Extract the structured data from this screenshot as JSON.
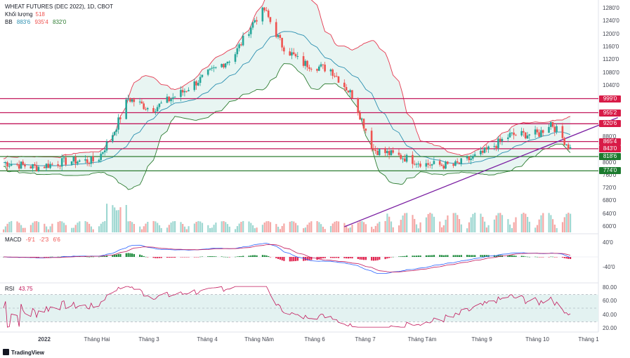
{
  "header": {
    "title": "WHEAT FUTURES (DEC 2022), 1D, CBOT",
    "volume_label": "Khối lượng",
    "volume_value": "518",
    "bb_label": "BB",
    "bb_mid": "883'6",
    "bb_upper": "935'4",
    "bb_lower": "832'0",
    "macd_label": "MACD",
    "macd_v1": "-9'1",
    "macd_v2": "-2'3",
    "macd_v3": "6'6",
    "rsi_label": "RSI",
    "rsi_value": "43.75"
  },
  "colors": {
    "up": "#26a69a",
    "down": "#ef5350",
    "red_line": "#c2185b",
    "green_line": "#2e7d32",
    "trend": "#7b1fa2",
    "bb_fill": "#e8f5f2"
  },
  "price_ticks": [
    "1280'0",
    "1240'0",
    "1200'0",
    "1160'0",
    "1120'0",
    "1080'0",
    "1040'0",
    "880'0",
    "800'0",
    "760'0",
    "720'0",
    "680'0",
    "640'0",
    "600'0"
  ],
  "macd_ticks": [
    "40'0",
    "-40'0"
  ],
  "rsi_ticks": [
    "80.00",
    "60.00",
    "40.00",
    "20.00"
  ],
  "level_badges": [
    {
      "label": "999'0",
      "value": 999,
      "kind": "red"
    },
    {
      "label": "955'2",
      "value": 955.25,
      "kind": "red"
    },
    {
      "label": "920'6",
      "value": 920.75,
      "kind": "red"
    },
    {
      "label": "865'4",
      "value": 865.5,
      "kind": "red"
    },
    {
      "label": "843'0",
      "value": 843,
      "kind": "red"
    },
    {
      "label": "818'6",
      "value": 818.75,
      "kind": "green"
    },
    {
      "label": "774'0",
      "value": 774,
      "kind": "green"
    }
  ],
  "x_labels": [
    "2022",
    "Tháng Hai",
    "Tháng 3",
    "Tháng 4",
    "Tháng Năm",
    "Tháng 6",
    "Tháng 7",
    "Tháng Tám",
    "Tháng 9",
    "Tháng 10",
    "Tháng 1"
  ],
  "chart_data": {
    "type": "candlestick",
    "symbol": "WHEAT FUTURES (DEC 2022)",
    "interval": "1D",
    "exchange": "CBOT",
    "y_range": [
      600,
      1290
    ],
    "close_path": {
      "dates": [
        "2022-01-03",
        "2022-01-20",
        "2022-02-05",
        "2022-02-20",
        "2022-03-01",
        "2022-03-08",
        "2022-03-20",
        "2022-04-05",
        "2022-04-20",
        "2022-05-01",
        "2022-05-12",
        "2022-05-17",
        "2022-05-26",
        "2022-06-05",
        "2022-06-20",
        "2022-07-01",
        "2022-07-12",
        "2022-07-25",
        "2022-08-08",
        "2022-08-22",
        "2022-09-05",
        "2022-09-20",
        "2022-10-05",
        "2022-10-11",
        "2022-10-21"
      ],
      "close": [
        800,
        785,
        805,
        805,
        900,
        1000,
        965,
        1020,
        1085,
        1130,
        1245,
        1275,
        1165,
        1110,
        1090,
        1010,
        840,
        820,
        795,
        790,
        825,
        885,
        890,
        925,
        843
      ]
    },
    "levels": [
      999,
      955.25,
      920.75,
      865.5,
      843,
      818.75,
      774
    ],
    "trendline": {
      "from": [
        "2022-06-27",
        600
      ],
      "to": [
        "2022-10-31",
        940
      ]
    },
    "bollinger_last": {
      "basis": 883.75,
      "upper": 935.5,
      "lower": 832
    },
    "volume_last": 518,
    "macd_last": {
      "macd": -9.125,
      "signal": -2.375,
      "hist": 6.75
    },
    "rsi_last": 43.75,
    "rsi_band": [
      30,
      70
    ]
  }
}
